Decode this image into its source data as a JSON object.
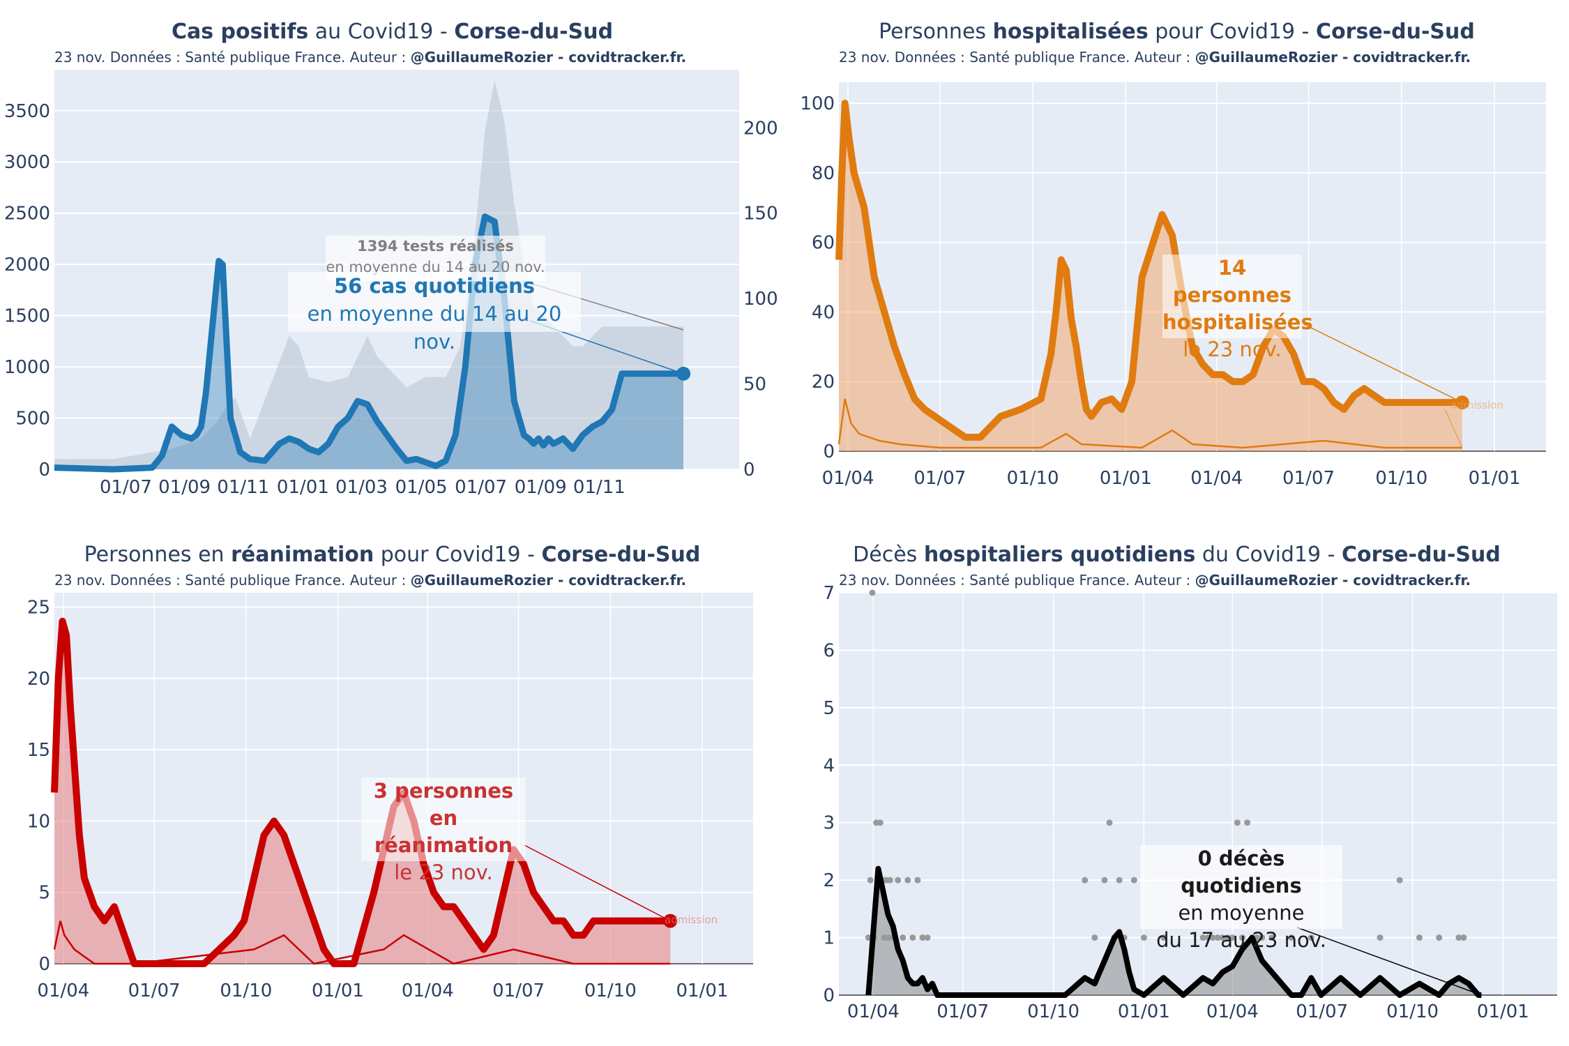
{
  "panels": [
    {
      "title_bold1": "Cas positifs",
      "title_mid": " au Covid19 - ",
      "title_bold2": "Corse-du-Sud",
      "subtitle_plain": "23 nov. Données : Santé publique France. Auteur : ",
      "subtitle_bold": "@GuillaumeRozier - covidtracker.fr.",
      "annotation": {
        "tests_bold": "1394 tests réalisés",
        "tests_line2": "en moyenne du 14 au 20 nov.",
        "main_bold": "56 cas quotidiens",
        "main_line2": "en moyenne du 14 au 20 nov."
      }
    },
    {
      "title_plain1": "Personnes ",
      "title_bold1": "hospitalisées",
      "title_mid": " pour Covid19 - ",
      "title_bold2": "Corse-du-Sud",
      "subtitle_plain": "23 nov. Données : Santé publique France. Auteur : ",
      "subtitle_bold": "@GuillaumeRozier - covidtracker.fr.",
      "annotation": {
        "line1": "14 personnes",
        "line2": "hospitalisées",
        "line3": "le 23 nov.",
        "faint": "admission"
      }
    },
    {
      "title_plain1": "Personnes en ",
      "title_bold1": "réanimation",
      "title_mid": " pour Covid19 - ",
      "title_bold2": "Corse-du-Sud",
      "subtitle_plain": "23 nov. Données : Santé publique France. Auteur : ",
      "subtitle_bold": "@GuillaumeRozier - covidtracker.fr.",
      "annotation": {
        "line1": "3 personnes",
        "line2": "en réanimation",
        "line3": "le 23 nov.",
        "faint": "admission"
      }
    },
    {
      "title_plain1": "Décès ",
      "title_bold1": "hospitaliers quotidiens",
      "title_mid": " du Covid19 - ",
      "title_bold2": "Corse-du-Sud",
      "subtitle_plain": "23 nov. Données : Santé publique France. Auteur : ",
      "subtitle_bold": "@GuillaumeRozier - covidtracker.fr.",
      "annotation": {
        "line1": "0 décès quotidiens",
        "line2": "en moyenne",
        "line3": "du 17 au 23 nov."
      }
    }
  ],
  "chart_data": [
    {
      "type": "line",
      "title": "Cas positifs au Covid19 - Corse-du-Sud",
      "x_tick_labels": [
        "01/07",
        "01/09",
        "01/11",
        "01/01",
        "01/03",
        "01/05",
        "01/07",
        "01/09",
        "01/11"
      ],
      "y_left_ticks": [
        "0",
        "500",
        "1000",
        "1500",
        "2000",
        "2500",
        "3000",
        "3500"
      ],
      "y_left_range": [
        0,
        3900
      ],
      "y_right_ticks": [
        "0",
        "50",
        "100",
        "150",
        "200"
      ],
      "y_right_range": [
        0,
        234
      ],
      "series": [
        {
          "name": "cases_7day_avg",
          "axis": "right",
          "color": "#1f77b4",
          "x": [
            0,
            60,
            100,
            110,
            120,
            130,
            140,
            145,
            150,
            155,
            160,
            168,
            172,
            180,
            190,
            200,
            215,
            230,
            240,
            250,
            260,
            270,
            280,
            290,
            300,
            310,
            320,
            330,
            340,
            350,
            360,
            370,
            380,
            390,
            400,
            410,
            420,
            430,
            440,
            450,
            460,
            470,
            480,
            485,
            490,
            495,
            500,
            505,
            510,
            520,
            530,
            540,
            550,
            560,
            570,
            580,
            590,
            600,
            610,
            620,
            630,
            640,
            643
          ],
          "y": [
            1,
            0,
            1,
            8,
            25,
            20,
            18,
            20,
            25,
            45,
            75,
            122,
            120,
            30,
            10,
            6,
            5,
            15,
            18,
            16,
            12,
            10,
            15,
            25,
            30,
            40,
            38,
            28,
            20,
            12,
            5,
            6,
            4,
            2,
            5,
            20,
            60,
            120,
            148,
            145,
            100,
            40,
            20,
            18,
            15,
            18,
            14,
            18,
            15,
            18,
            12,
            20,
            25,
            28,
            35,
            56,
            56,
            56,
            56,
            56,
            56,
            56,
            56
          ]
        },
        {
          "name": "tests_7day_avg",
          "axis": "left",
          "color": "#b8c4d3",
          "x": [
            0,
            60,
            90,
            120,
            150,
            165,
            175,
            185,
            200,
            240,
            250,
            260,
            280,
            300,
            320,
            330,
            340,
            350,
            360,
            380,
            400,
            415,
            430,
            440,
            450,
            460,
            470,
            480,
            490,
            500,
            510,
            520,
            530,
            540,
            550,
            560,
            570,
            580,
            590,
            600,
            643
          ],
          "y": [
            100,
            100,
            150,
            200,
            300,
            450,
            600,
            700,
            300,
            1300,
            1200,
            900,
            850,
            900,
            1300,
            1100,
            1000,
            900,
            800,
            900,
            900,
            1200,
            2300,
            3300,
            3800,
            3400,
            2600,
            2000,
            1600,
            1500,
            1400,
            1300,
            1200,
            1200,
            1300,
            1394,
            1394,
            1394,
            1394,
            1394,
            1394
          ]
        }
      ]
    },
    {
      "type": "line",
      "title": "Personnes hospitalisées pour Covid19 - Corse-du-Sud",
      "x_tick_labels": [
        "01/04",
        "01/07",
        "01/10",
        "01/01",
        "01/04",
        "01/07",
        "01/10",
        "01/01"
      ],
      "y_ticks": [
        "0",
        "20",
        "40",
        "60",
        "80",
        "100"
      ],
      "y_range": [
        0,
        106
      ],
      "series": [
        {
          "name": "hospitalisations",
          "color": "#e07b10",
          "x": [
            0,
            3,
            6,
            10,
            15,
            25,
            35,
            45,
            55,
            65,
            75,
            85,
            95,
            105,
            115,
            125,
            140,
            160,
            180,
            200,
            210,
            215,
            220,
            225,
            230,
            235,
            240,
            245,
            250,
            255,
            260,
            270,
            280,
            290,
            300,
            320,
            330,
            340,
            350,
            360,
            370,
            380,
            390,
            400,
            410,
            420,
            430,
            440,
            450,
            460,
            470,
            480,
            490,
            500,
            510,
            520,
            530,
            540,
            550,
            560,
            570,
            580,
            590,
            600,
            610,
            617
          ],
          "y": [
            55,
            80,
            100,
            90,
            80,
            70,
            50,
            40,
            30,
            22,
            15,
            12,
            10,
            8,
            6,
            4,
            4,
            10,
            12,
            15,
            28,
            40,
            55,
            52,
            38,
            30,
            20,
            12,
            10,
            12,
            14,
            15,
            12,
            20,
            50,
            68,
            62,
            45,
            30,
            25,
            22,
            22,
            20,
            20,
            22,
            30,
            35,
            33,
            28,
            20,
            20,
            18,
            14,
            12,
            16,
            18,
            16,
            14,
            14,
            14,
            14,
            14,
            14,
            14,
            14,
            14
          ]
        },
        {
          "name": "admissions",
          "color": "#e07b10",
          "x": [
            0,
            6,
            12,
            20,
            40,
            60,
            100,
            200,
            225,
            240,
            300,
            330,
            350,
            400,
            480,
            540,
            617
          ],
          "y": [
            2,
            15,
            8,
            5,
            3,
            2,
            1,
            1,
            5,
            2,
            1,
            6,
            2,
            1,
            3,
            1,
            1
          ]
        }
      ]
    },
    {
      "type": "line",
      "title": "Personnes en réanimation pour Covid19 - Corse-du-Sud",
      "x_tick_labels": [
        "01/04",
        "01/07",
        "01/10",
        "01/01",
        "01/04",
        "01/07",
        "01/10",
        "01/01"
      ],
      "y_ticks": [
        "0",
        "5",
        "10",
        "15",
        "20",
        "25"
      ],
      "y_range": [
        0,
        26
      ],
      "series": [
        {
          "name": "reanimations",
          "color": "#c80000",
          "x": [
            0,
            4,
            8,
            12,
            16,
            20,
            25,
            30,
            35,
            40,
            50,
            60,
            70,
            80,
            90,
            100,
            120,
            150,
            180,
            190,
            200,
            210,
            220,
            230,
            240,
            250,
            260,
            270,
            280,
            300,
            320,
            330,
            340,
            350,
            360,
            370,
            380,
            390,
            400,
            410,
            420,
            430,
            440,
            450,
            460,
            470,
            480,
            490,
            500,
            510,
            520,
            530,
            540,
            550,
            560,
            570,
            580,
            590,
            600,
            610,
            617
          ],
          "y": [
            12,
            20,
            24,
            23,
            18,
            14,
            9,
            6,
            5,
            4,
            3,
            4,
            2,
            0,
            0,
            0,
            0,
            0,
            2,
            3,
            6,
            9,
            10,
            9,
            7,
            5,
            3,
            1,
            0,
            0,
            5,
            8,
            11,
            12,
            10,
            7,
            5,
            4,
            4,
            3,
            2,
            1,
            2,
            5,
            8,
            7,
            5,
            4,
            3,
            3,
            2,
            2,
            3,
            3,
            3,
            3,
            3,
            3,
            3,
            3,
            3
          ]
        },
        {
          "name": "admissions",
          "color": "#c80000",
          "x": [
            0,
            6,
            10,
            20,
            40,
            80,
            200,
            230,
            260,
            330,
            350,
            400,
            460,
            520,
            617
          ],
          "y": [
            1,
            3,
            2,
            1,
            0,
            0,
            1,
            2,
            0,
            1,
            2,
            0,
            1,
            0,
            0
          ]
        }
      ]
    },
    {
      "type": "line",
      "title": "Décès hospitaliers quotidiens du Covid19 - Corse-du-Sud",
      "x_tick_labels": [
        "01/04",
        "01/07",
        "01/10",
        "01/01",
        "01/04",
        "01/07",
        "01/10",
        "01/01"
      ],
      "y_ticks": [
        "0",
        "1",
        "2",
        "3",
        "4",
        "5",
        "6",
        "7"
      ],
      "y_range": [
        0,
        7
      ],
      "series": [
        {
          "name": "deces_7day_avg",
          "color": "#000000",
          "x": [
            0,
            10,
            15,
            20,
            25,
            30,
            35,
            40,
            45,
            50,
            55,
            60,
            65,
            70,
            80,
            100,
            150,
            200,
            220,
            230,
            240,
            250,
            255,
            260,
            265,
            270,
            280,
            300,
            320,
            340,
            350,
            360,
            370,
            380,
            390,
            400,
            410,
            420,
            430,
            440,
            450,
            460,
            480,
            500,
            520,
            540,
            560,
            580,
            590,
            600,
            610,
            620,
            623
          ],
          "y": [
            0,
            2.2,
            1.8,
            1.4,
            1.2,
            0.8,
            0.6,
            0.3,
            0.2,
            0.2,
            0.3,
            0.1,
            0.2,
            0,
            0,
            0,
            0,
            0,
            0.3,
            0.2,
            0.6,
            1.0,
            1.1,
            0.8,
            0.4,
            0.1,
            0,
            0.3,
            0,
            0.3,
            0.2,
            0.4,
            0.5,
            0.8,
            1.0,
            0.6,
            0.4,
            0.2,
            0,
            0,
            0.3,
            0,
            0.3,
            0,
            0.3,
            0,
            0.2,
            0,
            0.2,
            0.3,
            0.2,
            0,
            0
          ]
        },
        {
          "name": "deces_daily",
          "color": "#999999",
          "x": [
            0,
            2,
            4,
            6,
            8,
            10,
            12,
            14,
            16,
            18,
            20,
            22,
            25,
            30,
            35,
            40,
            45,
            50,
            55,
            60,
            220,
            230,
            240,
            245,
            250,
            255,
            260,
            270,
            280,
            300,
            340,
            345,
            350,
            355,
            360,
            365,
            370,
            375,
            380,
            385,
            390,
            395,
            400,
            410,
            430,
            450,
            520,
            540,
            560,
            580,
            600,
            605
          ],
          "y": [
            1,
            2,
            7,
            1,
            3,
            2,
            3,
            2,
            1,
            2,
            1,
            2,
            1,
            2,
            1,
            2,
            1,
            2,
            1,
            1,
            2,
            1,
            2,
            3,
            1,
            2,
            1,
            2,
            1,
            1,
            1,
            1,
            1,
            1,
            1,
            1,
            1,
            3,
            1,
            3,
            1,
            1,
            1,
            1,
            1,
            1,
            1,
            2,
            1,
            1,
            1,
            1
          ]
        }
      ]
    }
  ]
}
